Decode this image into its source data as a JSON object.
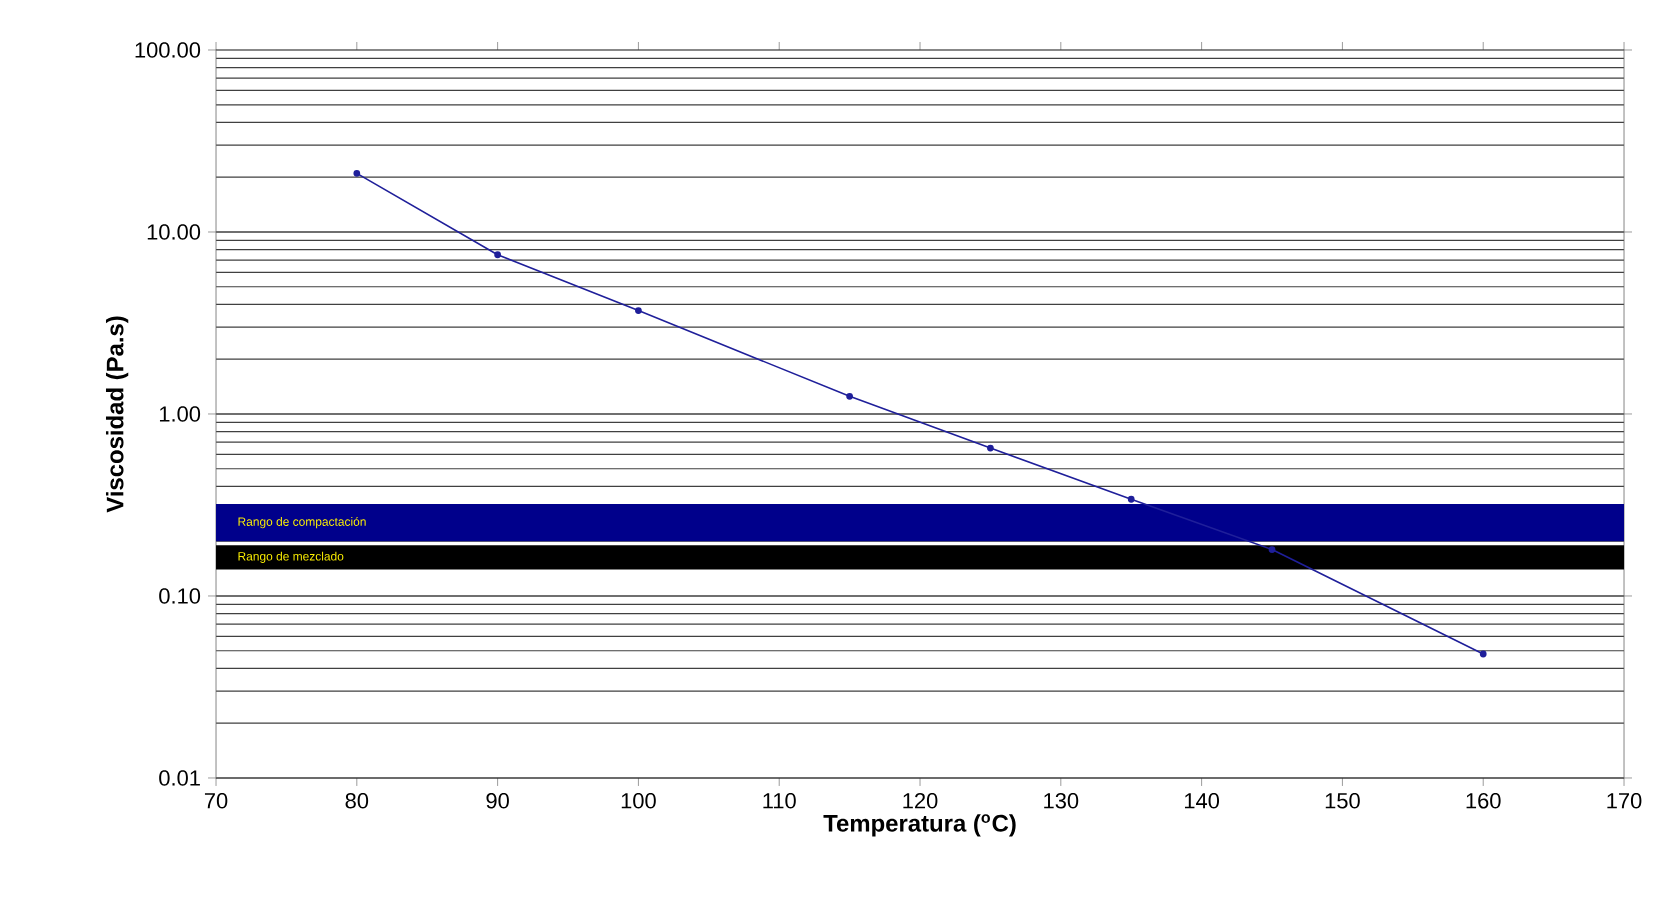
{
  "chart_data": {
    "type": "line",
    "xlabel": "Temperatura ($^{o}$C)",
    "ylabel": "Viscosidad (Pa.s)",
    "x": [
      80,
      90,
      100,
      115,
      125,
      135,
      145,
      160
    ],
    "series": [
      {
        "color": "#1f1f9a",
        "values": [
          21,
          7.5,
          3.7,
          1.25,
          0.65,
          0.34,
          0.18,
          0.048
        ]
      }
    ],
    "xlim": [
      70,
      170
    ],
    "xticks": [
      70,
      80,
      90,
      100,
      110,
      120,
      130,
      140,
      150,
      160,
      170
    ],
    "ylim": [
      0.01,
      100
    ],
    "yticks": [
      {
        "value": 0.01,
        "label": "0.01"
      },
      {
        "value": 0.1,
        "label": "0.10"
      },
      {
        "value": 1,
        "label": "1.00"
      },
      {
        "value": 10,
        "label": "10.00"
      },
      {
        "value": 100,
        "label": "100.00"
      }
    ],
    "log": "y",
    "grid": "y",
    "marker": "circle",
    "line_style": "solid",
    "bands": [
      {
        "axis": "y",
        "from": 0.2,
        "to": 0.32,
        "label": "Rango de compactación",
        "color": "#00008b"
      },
      {
        "axis": "y",
        "from": 0.14,
        "to": 0.19,
        "label": "Rango de mezclado",
        "color": "#000000"
      }
    ]
  }
}
